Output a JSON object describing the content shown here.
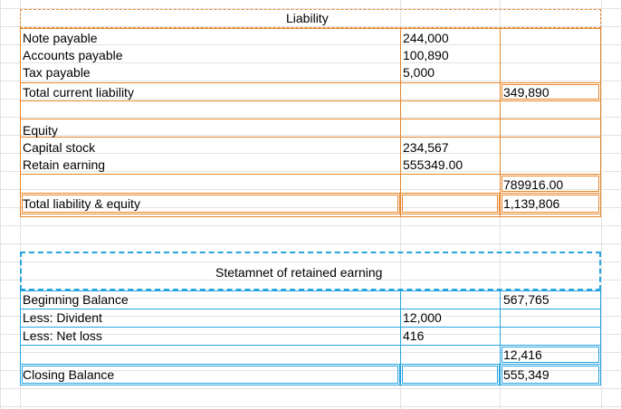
{
  "liability": {
    "title": "Liability",
    "rows": [
      {
        "label": "Note payable",
        "amount": "244,000",
        "total": ""
      },
      {
        "label": "Accounts payable",
        "amount": "100,890",
        "total": ""
      },
      {
        "label": "Tax payable",
        "amount": "5,000",
        "total": ""
      },
      {
        "label": "Total current liability",
        "amount": "",
        "total": "349,890"
      }
    ],
    "equity_rows": [
      {
        "label": "Equity",
        "amount": "",
        "total": ""
      },
      {
        "label": "Capital stock",
        "amount": "234,567",
        "total": ""
      },
      {
        "label": "Retain earning",
        "amount": "555349.00",
        "total": ""
      },
      {
        "label": "",
        "amount": "",
        "total": "789916.00"
      },
      {
        "label": "Total liability & equity",
        "amount": "",
        "total": "1,139,806"
      }
    ]
  },
  "retained": {
    "title": "Stetamnet of retained earning",
    "rows": [
      {
        "label": "Beginning Balance",
        "amount": "",
        "total": "567,765"
      },
      {
        "label": "Less: Divident",
        "amount": "12,000",
        "total": ""
      },
      {
        "label": "Less: Net loss",
        "amount": "416",
        "total": ""
      },
      {
        "label": "",
        "amount": "",
        "total": "12,416"
      },
      {
        "label": "Closing Balance",
        "amount": "",
        "total": "555,349"
      }
    ]
  }
}
